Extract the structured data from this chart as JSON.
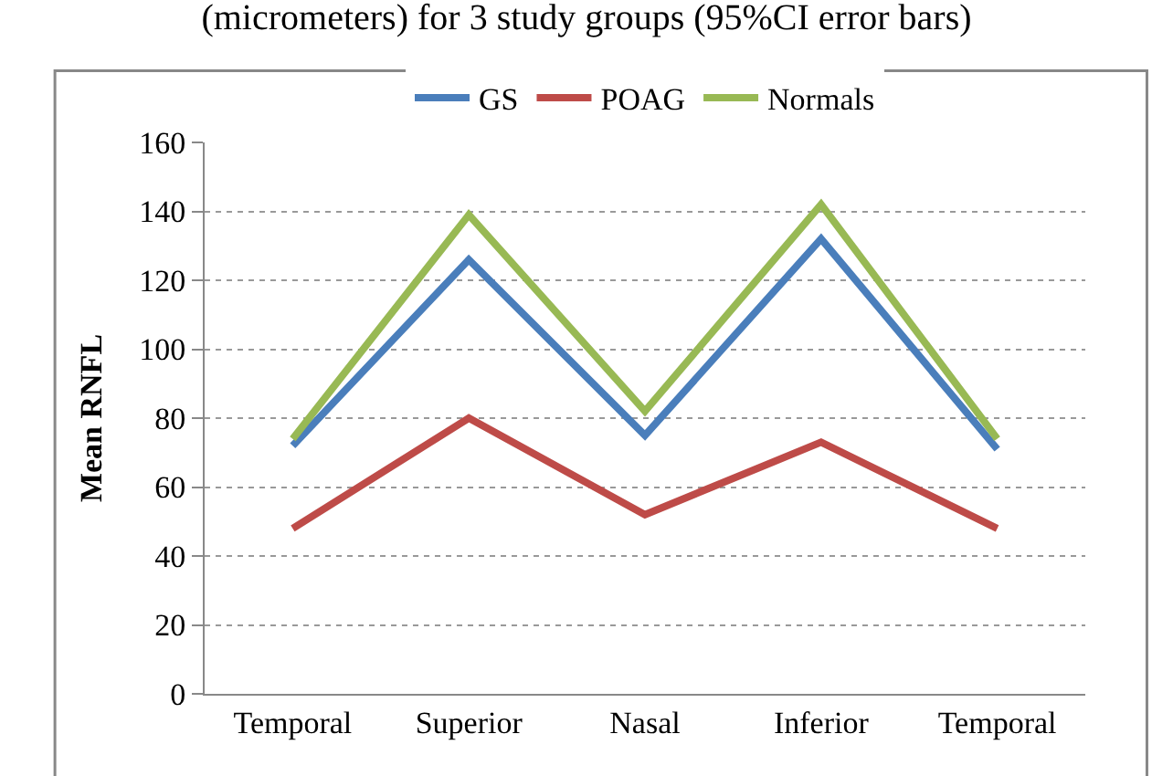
{
  "chart_data": {
    "type": "line",
    "title": "(micrometers) for 3 study groups (95%CI error bars)",
    "ylabel": "Mean RNFL",
    "categories": [
      "Temporal",
      "Superior",
      "Nasal",
      "Inferior",
      "Temporal"
    ],
    "series": [
      {
        "name": "GS",
        "color": "#4a7ebb",
        "values": [
          72,
          126,
          75,
          132,
          71
        ]
      },
      {
        "name": "POAG",
        "color": "#be4b48",
        "values": [
          48,
          80,
          52,
          73,
          48
        ]
      },
      {
        "name": "Normals",
        "color": "#98b954",
        "values": [
          74,
          139,
          82,
          142,
          74
        ]
      }
    ],
    "ylim": [
      0,
      160
    ],
    "yticks": [
      0,
      20,
      40,
      60,
      80,
      100,
      120,
      140,
      160
    ],
    "grid": "y",
    "legend": "top",
    "marker": "none",
    "line_style": "solid"
  }
}
